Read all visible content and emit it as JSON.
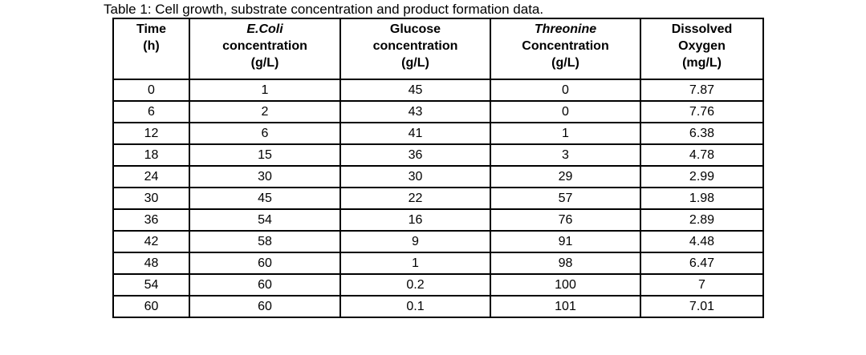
{
  "page": {
    "background": "#ffffff",
    "text_color": "#000000",
    "border_color": "#000000"
  },
  "table": {
    "caption": "Table 1: Cell growth, substrate concentration and product formation data.",
    "columns": [
      {
        "lines": [
          "Time",
          "(h)"
        ]
      },
      {
        "lines": [
          "E.Coli",
          "concentration",
          "(g/L)"
        ]
      },
      {
        "lines": [
          "Glucose",
          "concentration",
          "(g/L)"
        ]
      },
      {
        "lines": [
          "Threonine",
          "Concentration",
          "(g/L)"
        ]
      },
      {
        "lines": [
          "Dissolved",
          "Oxygen",
          "(mg/L)"
        ]
      }
    ],
    "rows": [
      [
        "0",
        "1",
        "45",
        "0",
        "7.87"
      ],
      [
        "6",
        "2",
        "43",
        "0",
        "7.76"
      ],
      [
        "12",
        "6",
        "41",
        "1",
        "6.38"
      ],
      [
        "18",
        "15",
        "36",
        "3",
        "4.78"
      ],
      [
        "24",
        "30",
        "30",
        "29",
        "2.99"
      ],
      [
        "30",
        "45",
        "22",
        "57",
        "1.98"
      ],
      [
        "36",
        "54",
        "16",
        "76",
        "2.89"
      ],
      [
        "42",
        "58",
        "9",
        "91",
        "4.48"
      ],
      [
        "48",
        "60",
        "1",
        "98",
        "6.47"
      ],
      [
        "54",
        "60",
        "0.2",
        "100",
        "7"
      ],
      [
        "60",
        "60",
        "0.1",
        "101",
        "7.01"
      ]
    ]
  }
}
